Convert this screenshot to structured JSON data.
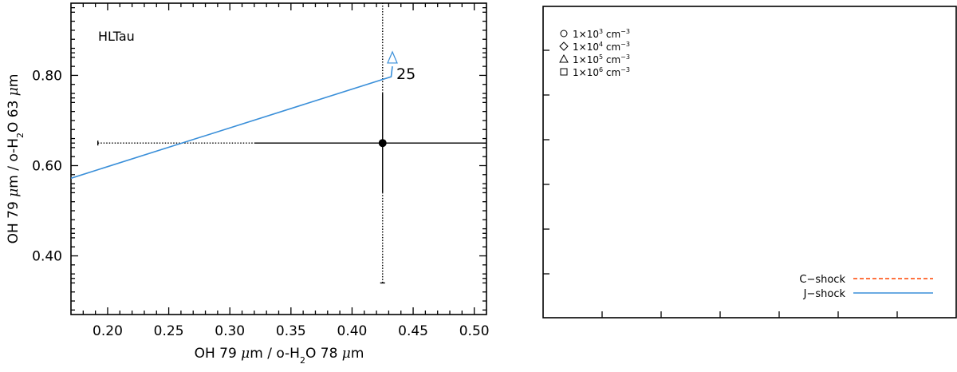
{
  "chart_data": [
    {
      "type": "scatter",
      "title": "HLTau",
      "xlabel_parts": [
        "OH 79 ",
        "μ",
        "m / o-H",
        "2",
        "O 78 ",
        "μ",
        "m"
      ],
      "ylabel_parts": [
        "OH 79 ",
        "μ",
        "m / o-H",
        "2",
        "O 63 ",
        "μ",
        "m"
      ],
      "xlim": [
        0.17,
        0.51
      ],
      "ylim": [
        0.27,
        0.96
      ],
      "xticks": [
        0.2,
        0.25,
        0.3,
        0.35,
        0.4,
        0.45,
        0.5
      ],
      "yticks": [
        0.4,
        0.6,
        0.8
      ],
      "xtick_labels": [
        "0.20",
        "0.25",
        "0.30",
        "0.35",
        "0.40",
        "0.45",
        "0.50"
      ],
      "ytick_labels": [
        "0.40",
        "0.60",
        "0.80"
      ],
      "observation": {
        "x": 0.425,
        "y": 0.65,
        "x_err_solid": [
          0.32,
          0.51
        ],
        "x_err_dotted": [
          0.192,
          0.32
        ],
        "y_err_solid": [
          0.54,
          0.76
        ],
        "y_err_dotted_up": [
          0.76,
          0.96
        ],
        "y_err_dotted_down": [
          0.34,
          0.54
        ]
      },
      "j_shock_line": {
        "color": "#3a8fd9",
        "points": [
          [
            0.17,
            0.572
          ],
          [
            0.432,
            0.797
          ],
          [
            0.433,
            0.82
          ]
        ]
      },
      "marker": {
        "shape": "triangle",
        "x": 0.433,
        "y": 0.838,
        "color": "#3a8fd9",
        "label": "25"
      }
    },
    {
      "type": "scatter",
      "empty_panel": true,
      "legend_markers": [
        {
          "symbol": "circle",
          "text_base": "1×10",
          "exp": "3",
          "unit_base": " cm",
          "unit_exp": "−3"
        },
        {
          "symbol": "diamond",
          "text_base": "1×10",
          "exp": "4",
          "unit_base": " cm",
          "unit_exp": "−3"
        },
        {
          "symbol": "triangle",
          "text_base": "1×10",
          "exp": "5",
          "unit_base": " cm",
          "unit_exp": "−3"
        },
        {
          "symbol": "square",
          "text_base": "1×10",
          "exp": "6",
          "unit_base": " cm",
          "unit_exp": "−3"
        }
      ],
      "legend_lines": [
        {
          "label": "C−shock",
          "color": "#ff4500",
          "dash": true
        },
        {
          "label": "J−shock",
          "color": "#3a8fd9",
          "dash": false
        }
      ]
    }
  ]
}
